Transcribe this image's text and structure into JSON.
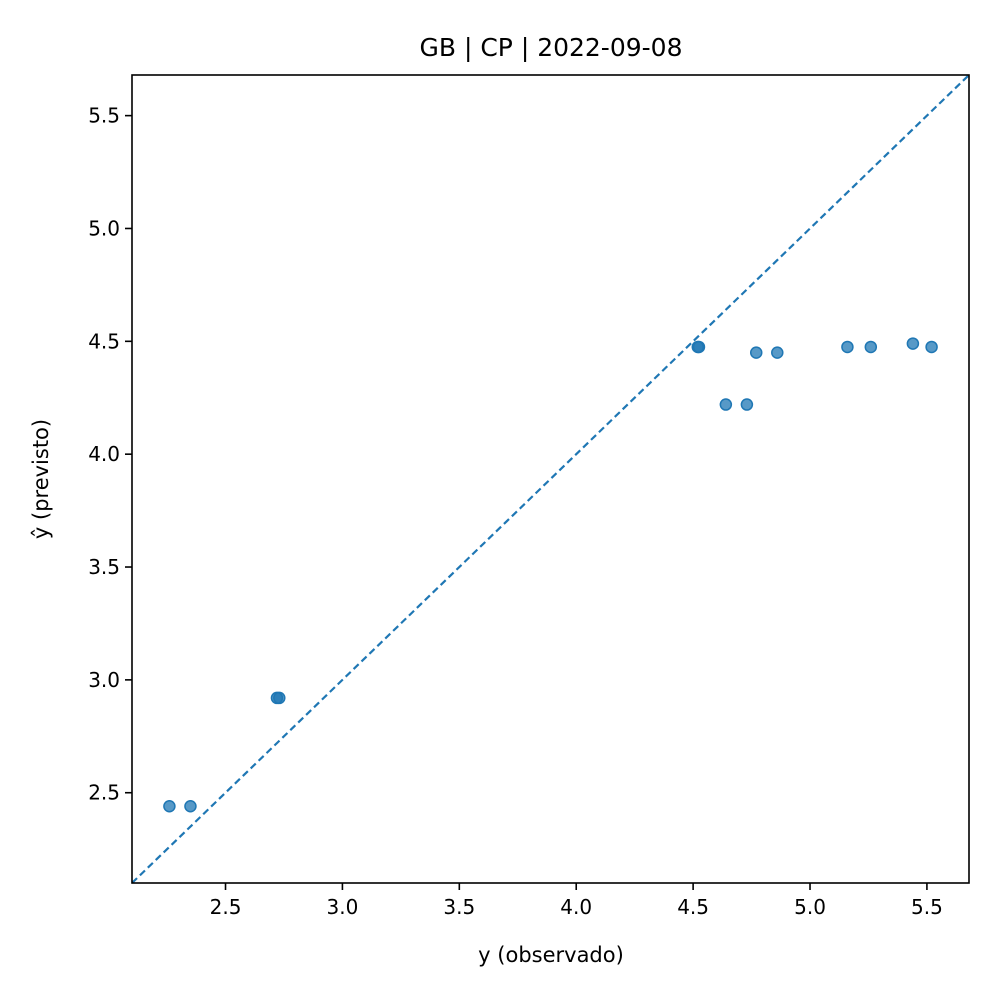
{
  "chart_data": {
    "type": "scatter",
    "title": "GB | CP | 2022-09-08",
    "xlabel": "y (observado)",
    "ylabel": "ŷ (previsto)",
    "xlim": [
      2.1,
      5.68
    ],
    "ylim": [
      2.1,
      5.68
    ],
    "xticks": [
      "2.5",
      "3.0",
      "3.5",
      "4.0",
      "4.5",
      "5.0",
      "5.5"
    ],
    "yticks": [
      "2.5",
      "3.0",
      "3.5",
      "4.0",
      "4.5",
      "5.0",
      "5.5"
    ],
    "grid": false,
    "reference_line": {
      "style": "dashed",
      "from": [
        2.1,
        2.1
      ],
      "to": [
        5.68,
        5.68
      ]
    },
    "points": [
      {
        "x": 2.26,
        "y": 2.44
      },
      {
        "x": 2.35,
        "y": 2.44
      },
      {
        "x": 2.72,
        "y": 2.92
      },
      {
        "x": 2.73,
        "y": 2.92
      },
      {
        "x": 4.52,
        "y": 4.475
      },
      {
        "x": 4.525,
        "y": 4.475
      },
      {
        "x": 4.64,
        "y": 4.22
      },
      {
        "x": 4.73,
        "y": 4.22
      },
      {
        "x": 4.77,
        "y": 4.45
      },
      {
        "x": 4.86,
        "y": 4.45
      },
      {
        "x": 5.16,
        "y": 4.475
      },
      {
        "x": 5.26,
        "y": 4.475
      },
      {
        "x": 5.44,
        "y": 4.49
      },
      {
        "x": 5.52,
        "y": 4.475
      }
    ],
    "colors": {
      "marker": "#1f77b4",
      "line": "#1f77b4"
    }
  }
}
